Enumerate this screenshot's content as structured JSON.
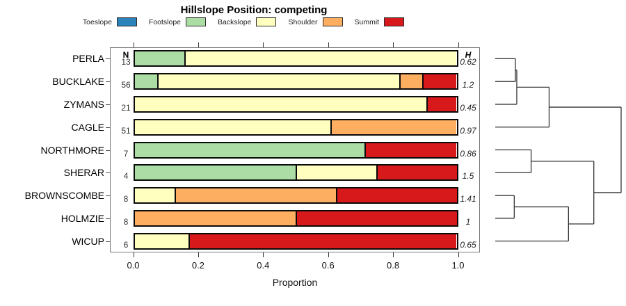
{
  "title": "Hillslope Position: competing",
  "legend": {
    "items": [
      {
        "label": "Toeslope",
        "color": "#2B83BA"
      },
      {
        "label": "Footslope",
        "color": "#ABDDA4"
      },
      {
        "label": "Backslope",
        "color": "#FFFFBF"
      },
      {
        "label": "Shoulder",
        "color": "#FDAE61"
      },
      {
        "label": "Summit",
        "color": "#D7191C"
      }
    ]
  },
  "columns": {
    "n_header": "N",
    "h_header": "H"
  },
  "axis": {
    "xlabel": "Proportion",
    "xlim": [
      0,
      1
    ],
    "ticks": [
      0,
      0.2,
      0.4,
      0.6,
      0.8,
      1.0
    ],
    "tick_labels": [
      "0.0",
      "0.2",
      "0.4",
      "0.6",
      "0.8",
      "1.0"
    ]
  },
  "chart_data": {
    "type": "bar",
    "stacked": true,
    "orientation": "horizontal",
    "title": "Hillslope Position: competing",
    "xlabel": "Proportion",
    "xlim": [
      0,
      1
    ],
    "categories": [
      "Toeslope",
      "Footslope",
      "Backslope",
      "Shoulder",
      "Summit"
    ],
    "colors": [
      "#2B83BA",
      "#ABDDA4",
      "#FFFFBF",
      "#FDAE61",
      "#D7191C"
    ],
    "rows": [
      {
        "site": "PERLA",
        "n": 13,
        "h": "0.62",
        "proportions": {
          "Toeslope": 0,
          "Footslope": 0.154,
          "Backslope": 0.846,
          "Shoulder": 0,
          "Summit": 0
        }
      },
      {
        "site": "BUCKLAKE",
        "n": 56,
        "h": "1.2",
        "proportions": {
          "Toeslope": 0,
          "Footslope": 0.071,
          "Backslope": 0.75,
          "Shoulder": 0.071,
          "Summit": 0.107
        }
      },
      {
        "site": "ZYMANS",
        "n": 21,
        "h": "0.45",
        "proportions": {
          "Toeslope": 0,
          "Footslope": 0,
          "Backslope": 0.905,
          "Shoulder": 0,
          "Summit": 0.095
        }
      },
      {
        "site": "CAGLE",
        "n": 51,
        "h": "0.97",
        "proportions": {
          "Toeslope": 0,
          "Footslope": 0,
          "Backslope": 0.608,
          "Shoulder": 0.392,
          "Summit": 0
        }
      },
      {
        "site": "NORTHMORE",
        "n": 7,
        "h": "0.86",
        "proportions": {
          "Toeslope": 0,
          "Footslope": 0.714,
          "Backslope": 0,
          "Shoulder": 0,
          "Summit": 0.286
        }
      },
      {
        "site": "SHERAR",
        "n": 4,
        "h": "1.5",
        "proportions": {
          "Toeslope": 0,
          "Footslope": 0.5,
          "Backslope": 0.25,
          "Shoulder": 0,
          "Summit": 0.25
        }
      },
      {
        "site": "BROWNSCOMBE",
        "n": 8,
        "h": "1.41",
        "proportions": {
          "Toeslope": 0,
          "Footslope": 0,
          "Backslope": 0.125,
          "Shoulder": 0.5,
          "Summit": 0.375
        }
      },
      {
        "site": "HOLMZIE",
        "n": 8,
        "h": "1",
        "proportions": {
          "Toeslope": 0,
          "Footslope": 0,
          "Backslope": 0,
          "Shoulder": 0.5,
          "Summit": 0.5
        }
      },
      {
        "site": "WICUP",
        "n": 6,
        "h": "0.65",
        "proportions": {
          "Toeslope": 0,
          "Footslope": 0,
          "Backslope": 0.167,
          "Shoulder": 0,
          "Summit": 0.833
        }
      }
    ]
  },
  "dendrogram": {
    "leaves": [
      "PERLA",
      "BUCKLAKE",
      "ZYMANS",
      "CAGLE",
      "NORTHMORE",
      "SHERAR",
      "BROWNSCOMBE",
      "HOLMZIE",
      "WICUP"
    ],
    "merges": [
      {
        "a": "PERLA",
        "b": "BUCKLAKE",
        "height": 0.16
      },
      {
        "a": "#0",
        "b": "ZYMANS",
        "height": 0.171
      },
      {
        "a": "#1",
        "b": "CAGLE",
        "height": 0.428
      },
      {
        "a": "NORTHMORE",
        "b": "SHERAR",
        "height": 0.285
      },
      {
        "a": "BROWNSCOMBE",
        "b": "HOLMZIE",
        "height": 0.151
      },
      {
        "a": "#4",
        "b": "WICUP",
        "height": 0.582
      },
      {
        "a": "#3",
        "b": "#5",
        "height": 0.783
      },
      {
        "a": "#2",
        "b": "#6",
        "height": 1.0
      }
    ]
  }
}
